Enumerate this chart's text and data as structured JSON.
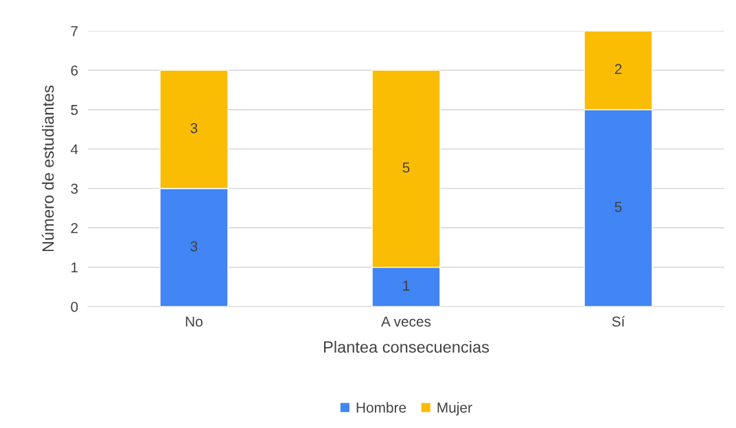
{
  "chart_data": {
    "type": "bar",
    "stacked": true,
    "xlabel": "Plantea consecuencias",
    "ylabel": "Número de estudiantes",
    "categories": [
      "No",
      "A veces",
      "Sí"
    ],
    "series": [
      {
        "name": "Hombre",
        "color": "#4285f4",
        "values": [
          3,
          1,
          5
        ]
      },
      {
        "name": "Mujer",
        "color": "#fbbc04",
        "values": [
          3,
          5,
          2
        ]
      }
    ],
    "ylim": [
      0,
      7
    ],
    "yticks": [
      0,
      1,
      2,
      3,
      4,
      5,
      6,
      7
    ],
    "grid": "y",
    "legend": "bottom",
    "data_labels": true
  }
}
